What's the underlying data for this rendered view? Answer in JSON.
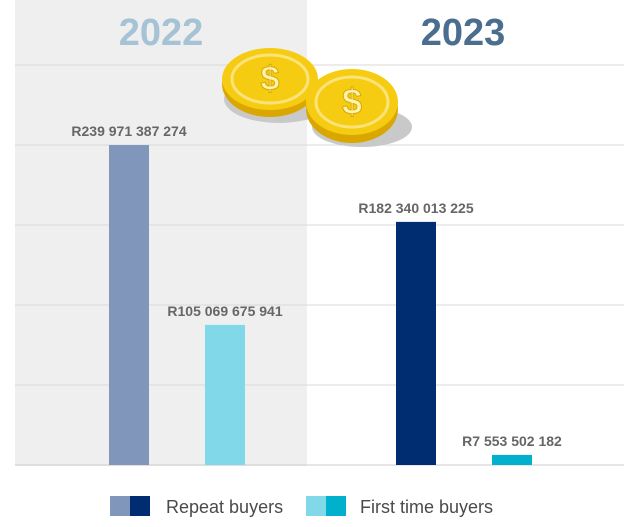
{
  "chart_data": {
    "type": "bar",
    "title": "",
    "xlabel": "",
    "ylabel": "",
    "ylim": [
      0,
      300000000000
    ],
    "grid": true,
    "legend_position": "bottom-center",
    "currency_icon": "coin-icon",
    "groups": [
      {
        "label": "2022",
        "bars": [
          {
            "series": "Repeat buyers",
            "value": 239971387274,
            "value_label": "R239 971 387 274"
          },
          {
            "series": "First time buyers",
            "value": 105069675941,
            "value_label": "R105 069 675 941"
          }
        ]
      },
      {
        "label": "2023",
        "bars": [
          {
            "series": "Repeat buyers",
            "value": 182340013225,
            "value_label": "R182 340 013 225"
          },
          {
            "series": "First time buyers",
            "value": 7553502182,
            "value_label": "R7 553 502 182"
          }
        ]
      }
    ],
    "series": [
      {
        "name": "Repeat buyers",
        "colors": {
          "2022": "#8096bb",
          "2023": "#002d72"
        }
      },
      {
        "name": "First time buyers",
        "colors": {
          "2022": "#80d8e8",
          "2023": "#00b0cc"
        }
      }
    ],
    "colors": {
      "highlight_band": "#efefef",
      "grid": "#d9d9d9",
      "year_2022": "#a6c3d6",
      "year_2023": "#4b6e8f",
      "value_label": "#666666",
      "legend_text": "#4a4a4a",
      "coin": "#f2c511"
    }
  }
}
